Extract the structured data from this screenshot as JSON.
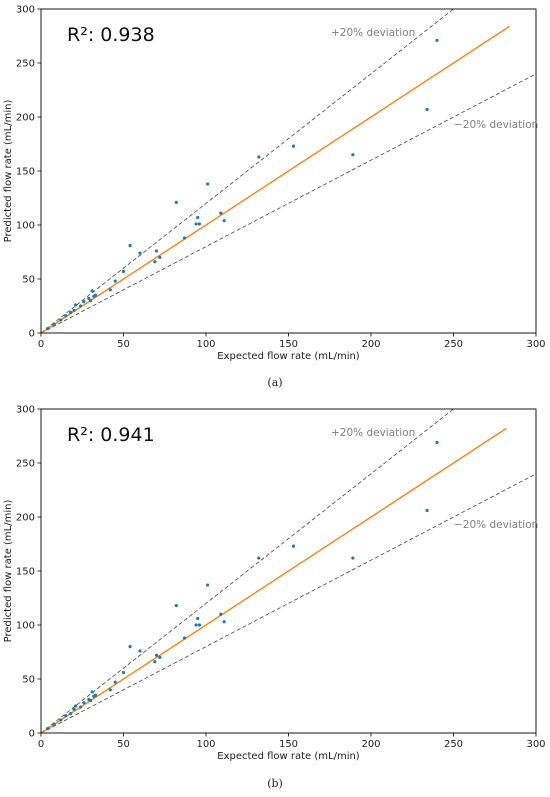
{
  "chart_data": [
    {
      "type": "scatter",
      "caption": "(a)",
      "r2_text": "R²: 0.938",
      "xlabel": "Expected flow rate (mL/min)",
      "ylabel": "Predicted flow rate (mL/min)",
      "xlim": [
        0,
        300
      ],
      "ylim": [
        0,
        300
      ],
      "xticks": [
        0,
        50,
        100,
        150,
        200,
        250,
        300
      ],
      "yticks": [
        0,
        50,
        100,
        150,
        200,
        250,
        300
      ],
      "annotations": [
        "+20% deviation",
        "−20% deviation"
      ],
      "reference_lines": {
        "upper_factor": 1.2,
        "lower_factor": 0.8,
        "fit_x_max": 284,
        "fit_y_max": 284
      },
      "series": [
        {
          "points": [
            [
              4,
              4
            ],
            [
              8,
              8
            ],
            [
              12,
              12
            ],
            [
              15,
              16
            ],
            [
              18,
              19
            ],
            [
              20,
              21
            ],
            [
              21,
              26
            ],
            [
              24,
              25
            ],
            [
              26,
              29
            ],
            [
              29,
              32
            ],
            [
              30,
              30
            ],
            [
              31,
              39
            ],
            [
              32,
              34
            ],
            [
              33,
              35
            ],
            [
              42,
              40
            ],
            [
              45,
              48
            ],
            [
              50,
              57
            ],
            [
              54,
              81
            ],
            [
              60,
              74
            ],
            [
              69,
              66
            ],
            [
              70,
              76
            ],
            [
              72,
              70
            ],
            [
              82,
              121
            ],
            [
              87,
              88
            ],
            [
              94,
              101
            ],
            [
              95,
              107
            ],
            [
              96,
              101
            ],
            [
              101,
              138
            ],
            [
              109,
              111
            ],
            [
              111,
              104
            ],
            [
              132,
              163
            ],
            [
              153,
              173
            ],
            [
              189,
              165
            ],
            [
              234,
              207
            ],
            [
              240,
              271
            ]
          ]
        }
      ],
      "colors": {
        "points": "#1f77b4",
        "fit": "#ff7f0e",
        "deviation": "#555555"
      }
    },
    {
      "type": "scatter",
      "caption": "(b)",
      "r2_text": "R²: 0.941",
      "xlabel": "Expected flow rate (mL/min)",
      "ylabel": "Predicted flow rate (mL/min)",
      "xlim": [
        0,
        300
      ],
      "ylim": [
        0,
        300
      ],
      "xticks": [
        0,
        50,
        100,
        150,
        200,
        250,
        300
      ],
      "yticks": [
        0,
        50,
        100,
        150,
        200,
        250,
        300
      ],
      "annotations": [
        "+20% deviation",
        "−20% deviation"
      ],
      "reference_lines": {
        "upper_factor": 1.2,
        "lower_factor": 0.8,
        "fit_x_max": 282,
        "fit_y_max": 282
      },
      "series": [
        {
          "points": [
            [
              4,
              4
            ],
            [
              8,
              8
            ],
            [
              12,
              12
            ],
            [
              15,
              16
            ],
            [
              18,
              18
            ],
            [
              20,
              22
            ],
            [
              21,
              25
            ],
            [
              24,
              24
            ],
            [
              26,
              28
            ],
            [
              29,
              31
            ],
            [
              30,
              30
            ],
            [
              31,
              38
            ],
            [
              32,
              34
            ],
            [
              33,
              35
            ],
            [
              42,
              40
            ],
            [
              45,
              47
            ],
            [
              50,
              56
            ],
            [
              54,
              80
            ],
            [
              60,
              76
            ],
            [
              69,
              66
            ],
            [
              70,
              72
            ],
            [
              72,
              70
            ],
            [
              82,
              118
            ],
            [
              87,
              88
            ],
            [
              94,
              100
            ],
            [
              95,
              106
            ],
            [
              96,
              100
            ],
            [
              101,
              137
            ],
            [
              109,
              110
            ],
            [
              111,
              103
            ],
            [
              132,
              162
            ],
            [
              153,
              173
            ],
            [
              189,
              162
            ],
            [
              234,
              206
            ],
            [
              240,
              269
            ]
          ]
        }
      ],
      "colors": {
        "points": "#1f77b4",
        "fit": "#ff7f0e",
        "deviation": "#555555"
      }
    }
  ]
}
